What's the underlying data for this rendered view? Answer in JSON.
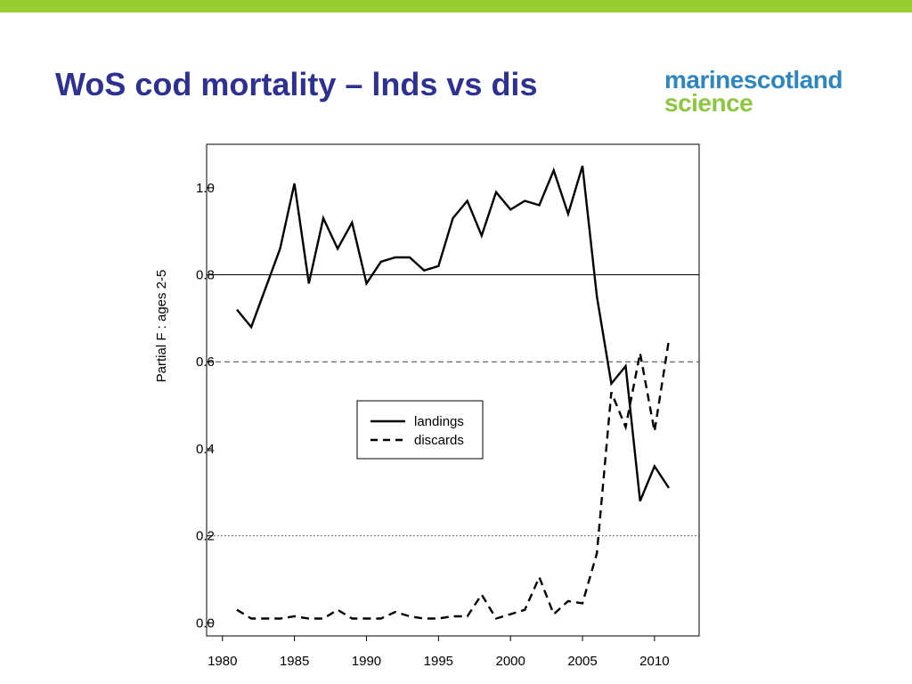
{
  "slide": {
    "title": "WoS cod mortality – lnds vs dis",
    "bar_color": "#9ACD32",
    "title_color": "#2E3192"
  },
  "logo": {
    "word1": "marine",
    "word2": "scotland",
    "word3": "science",
    "color_blue": "#2E86C1",
    "color_green": "#8DC63F"
  },
  "chart_data": {
    "type": "line",
    "title": "",
    "xlabel": "",
    "ylabel": "Partial F : ages 2-5",
    "xlim": [
      1978.9,
      2013.1
    ],
    "ylim": [
      -0.03,
      1.1
    ],
    "xticks": [
      1980,
      1985,
      1990,
      1995,
      2000,
      2005,
      2010
    ],
    "yticks": [
      0.0,
      0.2,
      0.4,
      0.6,
      0.8,
      1.0
    ],
    "ytick_labels": [
      "0.0",
      "0.2",
      "0.4",
      "0.6",
      "0.8",
      "1.0"
    ],
    "grid": false,
    "reference_lines": [
      {
        "y": 0.8,
        "style": "solid"
      },
      {
        "y": 0.6,
        "style": "dashed"
      },
      {
        "y": 0.2,
        "style": "dotted"
      }
    ],
    "legend_position": "center-left",
    "x": [
      1981,
      1982,
      1983,
      1984,
      1985,
      1986,
      1987,
      1988,
      1989,
      1990,
      1991,
      1992,
      1993,
      1994,
      1995,
      1996,
      1997,
      1998,
      1999,
      2000,
      2001,
      2002,
      2003,
      2004,
      2005,
      2006,
      2007,
      2008,
      2009,
      2010,
      2011
    ],
    "series": [
      {
        "name": "landings",
        "style": "solid",
        "values": [
          0.72,
          0.68,
          0.77,
          0.86,
          1.01,
          0.78,
          0.93,
          0.86,
          0.92,
          0.78,
          0.83,
          0.84,
          0.84,
          0.81,
          0.82,
          0.93,
          0.97,
          0.89,
          0.99,
          0.95,
          0.97,
          0.96,
          1.04,
          0.94,
          1.05,
          0.75,
          0.55,
          0.59,
          0.28,
          0.36,
          0.31
        ]
      },
      {
        "name": "discards",
        "style": "dashed",
        "values": [
          0.03,
          0.01,
          0.01,
          0.01,
          0.015,
          0.01,
          0.01,
          0.03,
          0.01,
          0.01,
          0.01,
          0.025,
          0.015,
          0.01,
          0.01,
          0.015,
          0.015,
          0.065,
          0.01,
          0.02,
          0.03,
          0.105,
          0.02,
          0.05,
          0.045,
          0.16,
          0.53,
          0.45,
          0.62,
          0.44,
          0.65
        ]
      }
    ]
  }
}
